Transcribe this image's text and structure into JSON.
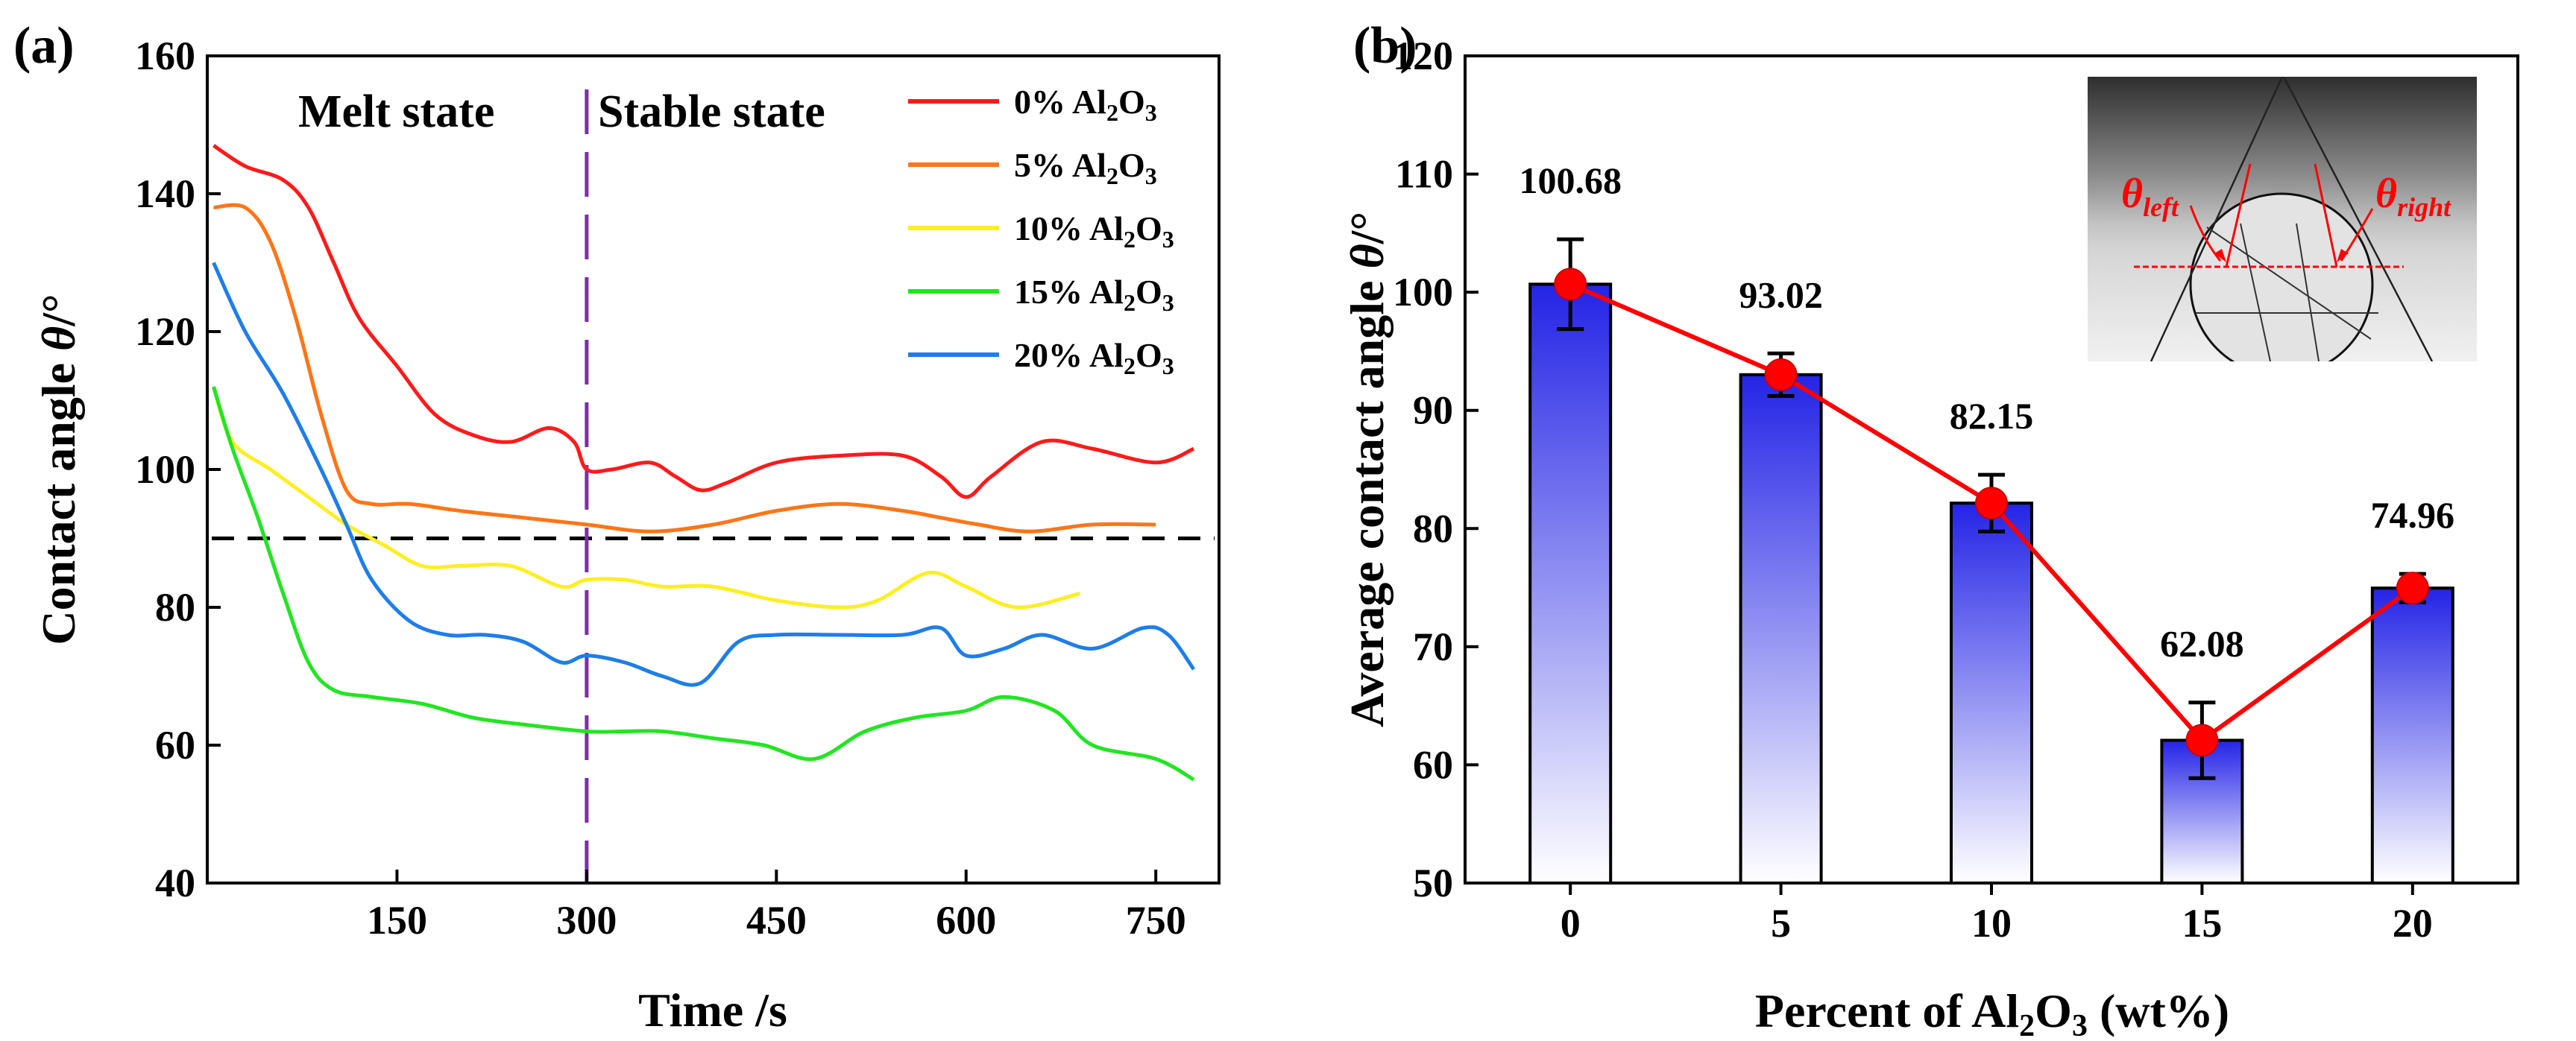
{
  "colors": {
    "axis": "#000000",
    "ref_line": "#000000",
    "divider": "#7b2fa8",
    "point": "#ff0000",
    "bar_top": "#2424e6",
    "bar_bottom": "#ffffff"
  },
  "chart_data": [
    {
      "panel": "(a)",
      "type": "line",
      "xlabel": "Time /s",
      "ylabel_prefix": "Contact angle ",
      "ylabel_symbol": "θ",
      "ylabel_suffix": "/°",
      "xlim": [
        0,
        800
      ],
      "ylim": [
        40,
        160
      ],
      "xticks": [
        150,
        300,
        450,
        600,
        750
      ],
      "yticks": [
        40,
        60,
        80,
        100,
        120,
        140,
        160
      ],
      "region_labels": {
        "left": "Melt state",
        "right": "Stable state"
      },
      "divider_x": 300,
      "reference_y": 90,
      "legend_position": "top-right",
      "series": [
        {
          "pct": "0%",
          "spacer": "  ",
          "chem": [
            "Al",
            "2",
            "O",
            "3"
          ],
          "color": "#ff1a1a",
          "x": [
            5,
            30,
            60,
            80,
            100,
            120,
            150,
            180,
            210,
            240,
            270,
            290,
            300,
            320,
            350,
            370,
            390,
            410,
            450,
            500,
            550,
            580,
            600,
            620,
            660,
            700,
            750,
            780
          ],
          "y": [
            147,
            144,
            142,
            138,
            130,
            122,
            115,
            108,
            105,
            104,
            106,
            104,
            100,
            100,
            101,
            99,
            97,
            98,
            101,
            102,
            102,
            99,
            96,
            99,
            104,
            103,
            101,
            103
          ]
        },
        {
          "pct": "5%",
          "spacer": "  ",
          "chem": [
            "Al",
            "2",
            "O",
            "3"
          ],
          "color": "#ff7518",
          "x": [
            5,
            30,
            50,
            70,
            90,
            110,
            130,
            160,
            200,
            250,
            300,
            350,
            400,
            450,
            500,
            550,
            580,
            610,
            650,
            700,
            750
          ],
          "y": [
            138,
            138,
            133,
            122,
            108,
            97,
            95,
            95,
            94,
            93,
            92,
            91,
            92,
            94,
            95,
            94,
            93,
            92,
            91,
            92,
            92
          ]
        },
        {
          "pct": "10%",
          "spacer": " ",
          "chem": [
            "Al",
            "2",
            "O",
            "3"
          ],
          "color": "#ffee22",
          "x": [
            5,
            20,
            50,
            80,
            110,
            140,
            170,
            200,
            240,
            280,
            300,
            330,
            360,
            400,
            450,
            500,
            530,
            570,
            600,
            640,
            690
          ],
          "y": [
            112,
            104,
            100,
            96,
            92,
            89,
            86,
            86,
            86,
            83,
            84,
            84,
            83,
            83,
            81,
            80,
            81,
            85,
            83,
            80,
            82
          ]
        },
        {
          "pct": "15%",
          "spacer": " ",
          "chem": [
            "Al",
            "2",
            "O",
            "3"
          ],
          "color": "#22e522",
          "x": [
            5,
            20,
            40,
            60,
            80,
            100,
            130,
            170,
            210,
            250,
            300,
            330,
            360,
            400,
            440,
            480,
            520,
            560,
            600,
            630,
            670,
            700,
            750,
            780
          ],
          "y": [
            112,
            103,
            93,
            82,
            72,
            68,
            67,
            66,
            64,
            63,
            62,
            62,
            62,
            61,
            60,
            58,
            62,
            64,
            65,
            67,
            65,
            60,
            58,
            55
          ]
        },
        {
          "pct": "20%",
          "spacer": " ",
          "chem": [
            "Al",
            "2",
            "O",
            "3"
          ],
          "color": "#1e7ee8",
          "x": [
            5,
            30,
            60,
            90,
            110,
            130,
            160,
            190,
            220,
            250,
            280,
            300,
            330,
            360,
            390,
            420,
            450,
            500,
            550,
            580,
            600,
            630,
            660,
            700,
            740,
            760,
            780
          ],
          "y": [
            130,
            120,
            111,
            100,
            92,
            84,
            78,
            76,
            76,
            75,
            72,
            73,
            72,
            70,
            69,
            75,
            76,
            76,
            76,
            77,
            73,
            74,
            76,
            74,
            77,
            76,
            71
          ]
        }
      ]
    },
    {
      "panel": "(b)",
      "type": "bar",
      "xlabel_prefix": "Percent of ",
      "xlabel_chem": [
        "Al",
        "2",
        "O",
        "3"
      ],
      "xlabel_suffix": " (wt%)",
      "ylabel_prefix": "Average contact angle ",
      "ylabel_symbol": "θ",
      "ylabel_suffix": "/°",
      "categories": [
        "0",
        "5",
        "10",
        "15",
        "20"
      ],
      "values": [
        100.68,
        93.02,
        82.15,
        62.08,
        74.96
      ],
      "value_labels": [
        "100.68",
        "93.02",
        "82.15",
        "62.08",
        "74.96"
      ],
      "errors": [
        3.8,
        1.8,
        2.4,
        3.2,
        1.2
      ],
      "ylim": [
        50,
        120
      ],
      "yticks": [
        50,
        60,
        70,
        80,
        90,
        100,
        110,
        120
      ],
      "inset": {
        "label_left_symbol": "θ",
        "label_left_sub": "left",
        "label_right_symbol": "θ",
        "label_right_sub": "right"
      }
    }
  ]
}
